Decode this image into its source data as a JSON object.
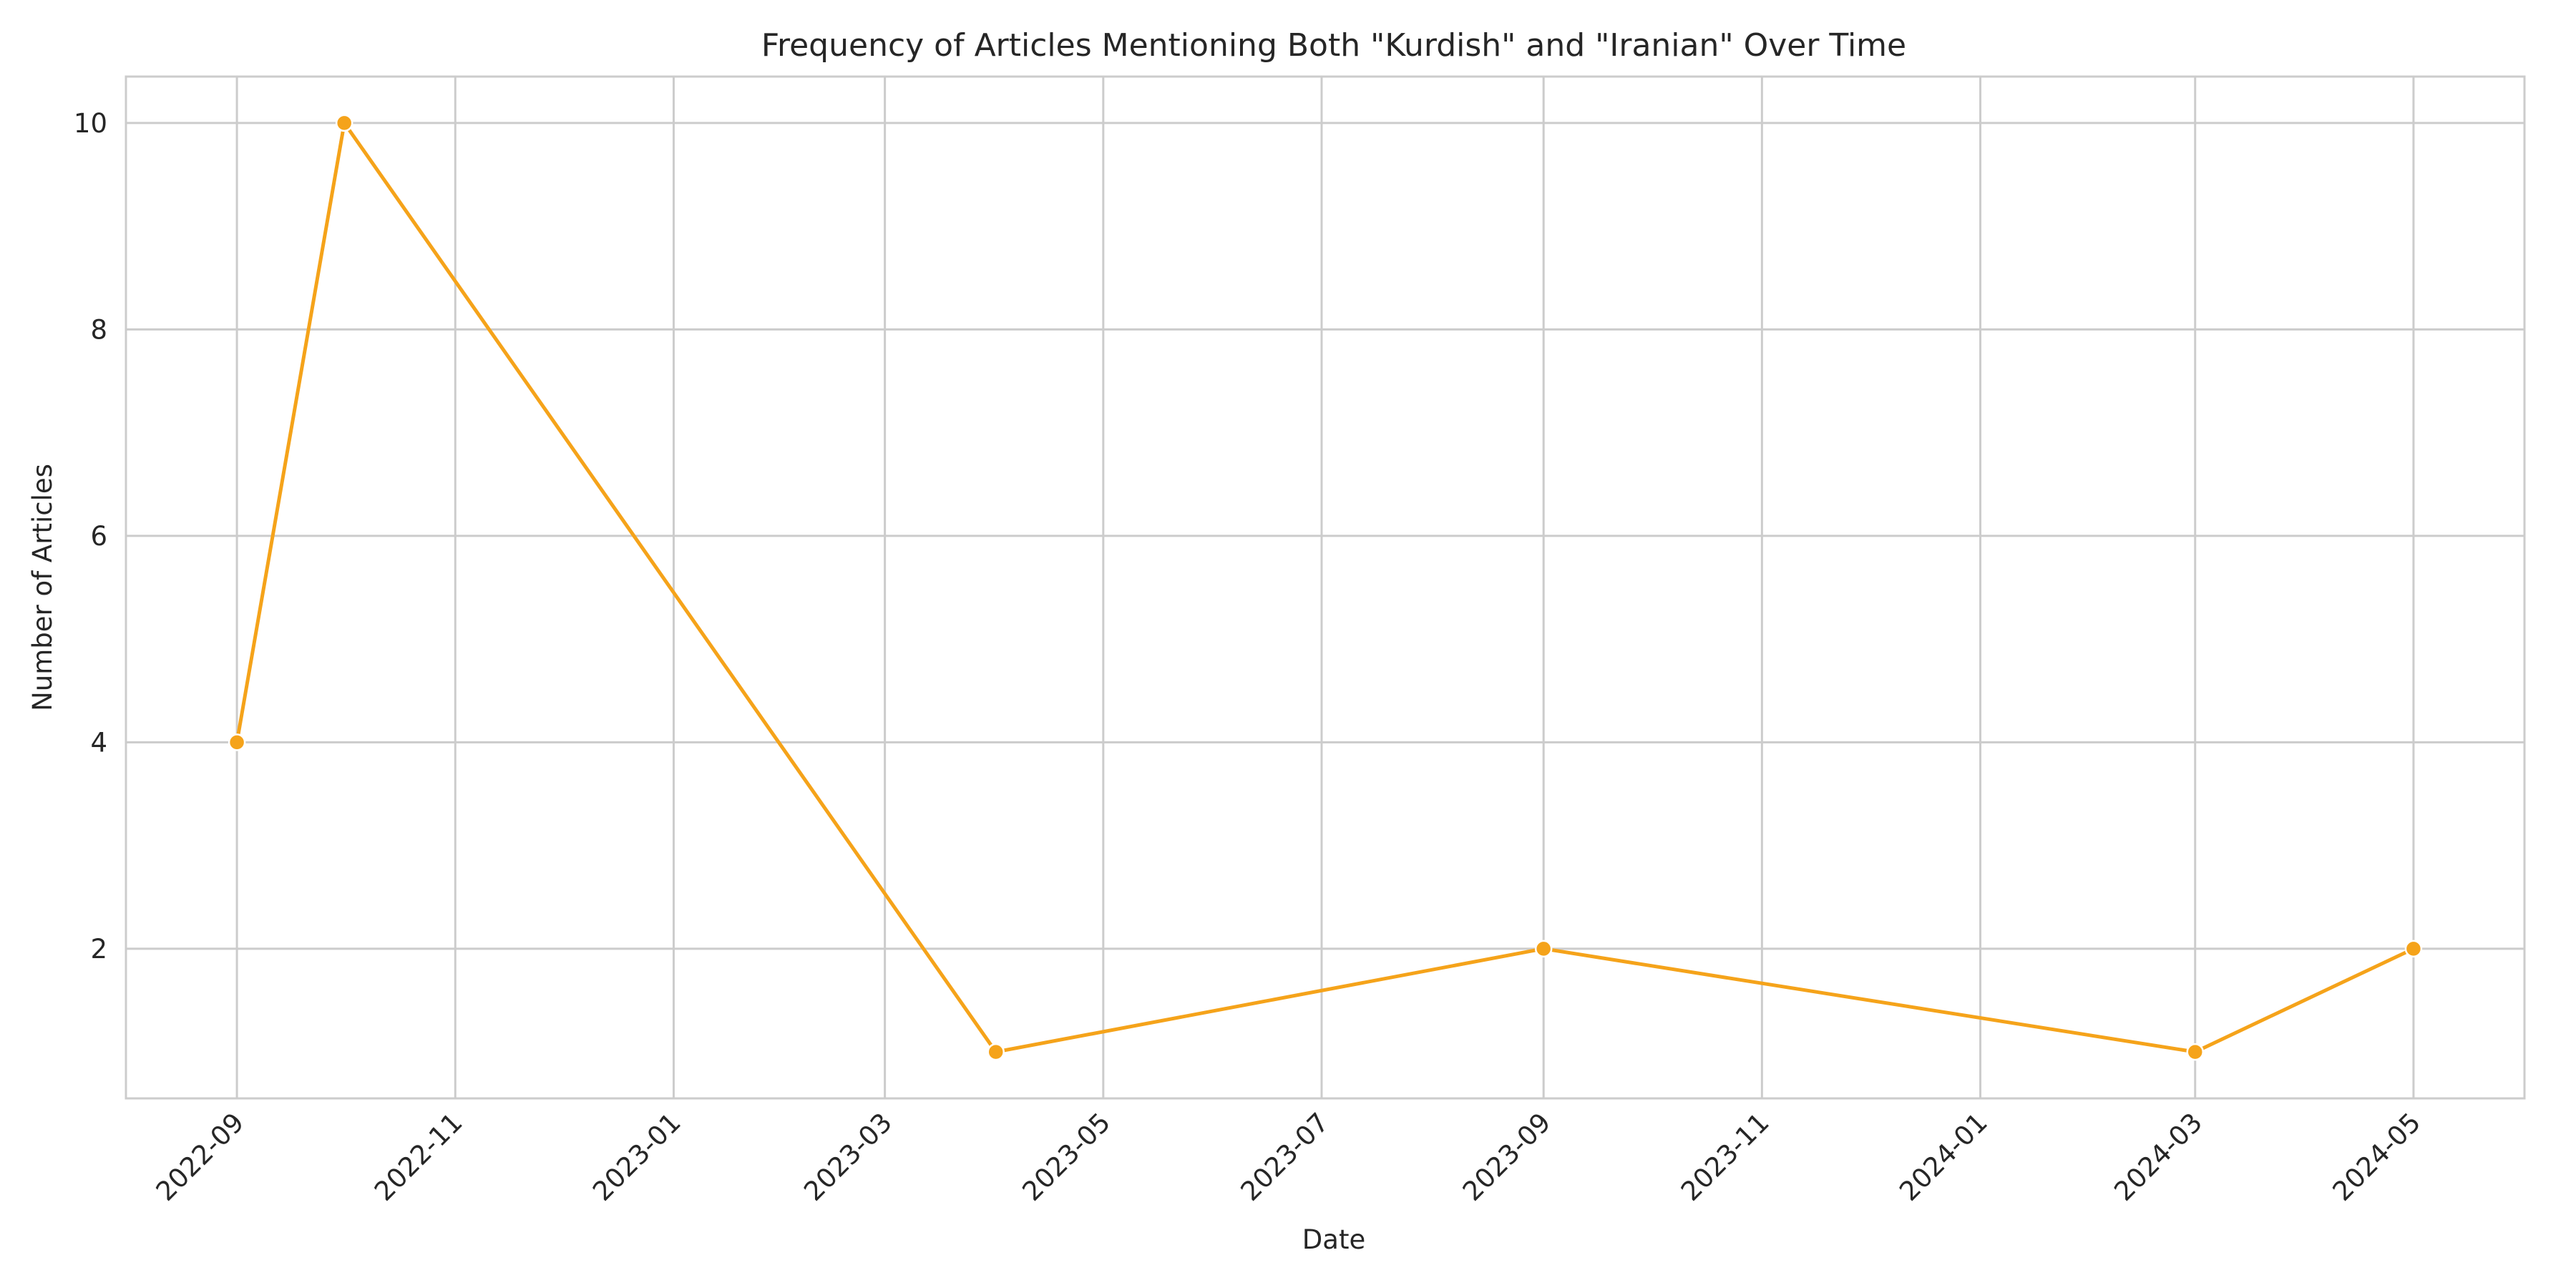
{
  "chart_data": {
    "type": "line",
    "title": "Frequency of Articles Mentioning Both \"Kurdish\" and \"Iranian\" Over Time",
    "xlabel": "Date",
    "ylabel": "Number of Articles",
    "series": [
      {
        "color": "#f5a31a",
        "points": [
          {
            "x": "2022-09-01",
            "y": 4
          },
          {
            "x": "2022-10-01",
            "y": 10
          },
          {
            "x": "2023-04-01",
            "y": 1
          },
          {
            "x": "2023-09-01",
            "y": 2
          },
          {
            "x": "2024-03-01",
            "y": 1
          },
          {
            "x": "2024-05-01",
            "y": 2
          }
        ]
      }
    ],
    "x_ticks": [
      "2022-09",
      "2022-11",
      "2023-01",
      "2023-03",
      "2023-05",
      "2023-07",
      "2023-09",
      "2023-11",
      "2024-01",
      "2024-03",
      "2024-05"
    ],
    "xlim": [
      "2022-08-01",
      "2024-06-01"
    ],
    "y_ticks": [
      2,
      4,
      6,
      8,
      10
    ],
    "ylim": [
      0.55,
      10.45
    ],
    "grid": true,
    "legend": "none"
  }
}
